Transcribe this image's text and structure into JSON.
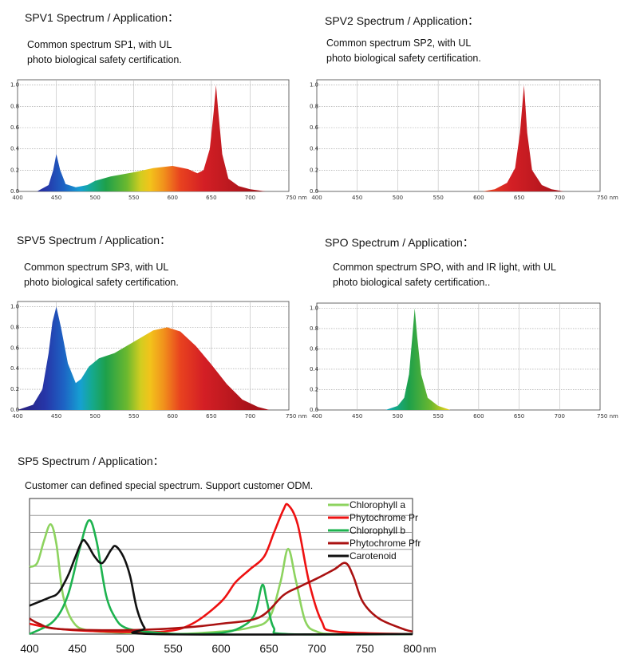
{
  "sections": {
    "spv1": {
      "title": "SPV1 Spectrum / Application：",
      "desc1": "Common spectrum SP1, with UL",
      "desc2": "photo biological safety certification."
    },
    "spv2": {
      "title": "SPV2 Spectrum / Application：",
      "desc1": "Common spectrum SP2, with UL",
      "desc2": "photo biological safety certification."
    },
    "spv5": {
      "title": "SPV5 Spectrum / Application：",
      "desc1": "Common spectrum SP3, with UL",
      "desc2": "photo biological safety certification."
    },
    "spo": {
      "title": "SPO Spectrum / Application：",
      "desc1": "Common spectrum SPO, with and IR light, with UL",
      "desc2": "photo biological safety certification.."
    },
    "sp5": {
      "title": "SP5 Spectrum / Application：",
      "desc1": "Customer can defined special spectrum. Support customer ODM."
    }
  },
  "chart_data": [
    {
      "id": "spv1",
      "type": "area",
      "x_ticks": [
        "400",
        "450",
        "500",
        "550",
        "600",
        "650",
        "700",
        "750 nm"
      ],
      "y_ticks": [
        "0.0",
        "0.2",
        "0.4",
        "0.6",
        "0.8",
        "1.0"
      ],
      "xlim": [
        400,
        750
      ],
      "ylim": [
        0,
        1.05
      ],
      "grid": true,
      "points": [
        [
          400,
          0.0
        ],
        [
          425,
          0.0
        ],
        [
          440,
          0.06
        ],
        [
          446,
          0.2
        ],
        [
          450,
          0.35
        ],
        [
          455,
          0.2
        ],
        [
          462,
          0.07
        ],
        [
          475,
          0.04
        ],
        [
          490,
          0.06
        ],
        [
          500,
          0.1
        ],
        [
          520,
          0.14
        ],
        [
          550,
          0.18
        ],
        [
          575,
          0.22
        ],
        [
          600,
          0.24
        ],
        [
          620,
          0.21
        ],
        [
          632,
          0.17
        ],
        [
          640,
          0.2
        ],
        [
          648,
          0.4
        ],
        [
          653,
          0.75
        ],
        [
          656,
          1.0
        ],
        [
          659,
          0.75
        ],
        [
          664,
          0.35
        ],
        [
          672,
          0.12
        ],
        [
          685,
          0.05
        ],
        [
          700,
          0.02
        ],
        [
          720,
          0.0
        ],
        [
          750,
          0.0
        ]
      ]
    },
    {
      "id": "spv2",
      "type": "area",
      "x_ticks": [
        "400",
        "450",
        "500",
        "550",
        "600",
        "650",
        "700",
        "750 nm"
      ],
      "y_ticks": [
        "0.0",
        "0.2",
        "0.4",
        "0.6",
        "0.8",
        "1.0"
      ],
      "xlim": [
        400,
        750
      ],
      "ylim": [
        0,
        1.05
      ],
      "grid": true,
      "points": [
        [
          400,
          0.0
        ],
        [
          605,
          0.0
        ],
        [
          620,
          0.02
        ],
        [
          635,
          0.08
        ],
        [
          645,
          0.22
        ],
        [
          651,
          0.55
        ],
        [
          656,
          1.0
        ],
        [
          660,
          0.55
        ],
        [
          666,
          0.2
        ],
        [
          678,
          0.06
        ],
        [
          690,
          0.02
        ],
        [
          705,
          0.0
        ],
        [
          750,
          0.0
        ]
      ]
    },
    {
      "id": "spv5",
      "type": "area",
      "x_ticks": [
        "400",
        "450",
        "500",
        "550",
        "600",
        "650",
        "700",
        "750 nm"
      ],
      "y_ticks": [
        "0.0",
        "0.2",
        "0.4",
        "0.6",
        "0.8",
        "1.0"
      ],
      "xlim": [
        400,
        750
      ],
      "ylim": [
        0,
        1.05
      ],
      "grid": true,
      "points": [
        [
          400,
          0.0
        ],
        [
          420,
          0.05
        ],
        [
          432,
          0.2
        ],
        [
          440,
          0.55
        ],
        [
          445,
          0.85
        ],
        [
          450,
          1.0
        ],
        [
          456,
          0.8
        ],
        [
          465,
          0.45
        ],
        [
          475,
          0.26
        ],
        [
          482,
          0.3
        ],
        [
          492,
          0.42
        ],
        [
          505,
          0.5
        ],
        [
          525,
          0.55
        ],
        [
          550,
          0.66
        ],
        [
          575,
          0.77
        ],
        [
          593,
          0.8
        ],
        [
          610,
          0.76
        ],
        [
          630,
          0.62
        ],
        [
          650,
          0.44
        ],
        [
          670,
          0.25
        ],
        [
          690,
          0.1
        ],
        [
          710,
          0.03
        ],
        [
          725,
          0.0
        ],
        [
          750,
          0.0
        ]
      ]
    },
    {
      "id": "spo",
      "type": "area",
      "x_ticks": [
        "400",
        "450",
        "500",
        "550",
        "600",
        "650",
        "700",
        "750 nm"
      ],
      "y_ticks": [
        "0.0",
        "0.2",
        "0.4",
        "0.6",
        "0.8",
        "1.0"
      ],
      "xlim": [
        400,
        750
      ],
      "ylim": [
        0,
        1.05
      ],
      "grid": true,
      "points": [
        [
          400,
          0.0
        ],
        [
          485,
          0.0
        ],
        [
          500,
          0.04
        ],
        [
          508,
          0.12
        ],
        [
          514,
          0.35
        ],
        [
          518,
          0.72
        ],
        [
          521,
          1.0
        ],
        [
          524,
          0.72
        ],
        [
          529,
          0.35
        ],
        [
          537,
          0.12
        ],
        [
          550,
          0.04
        ],
        [
          565,
          0.0
        ],
        [
          750,
          0.0
        ]
      ]
    },
    {
      "id": "sp5",
      "type": "line",
      "x_ticks": [
        "400",
        "450",
        "500",
        "550",
        "600",
        "650",
        "700",
        "750",
        "800"
      ],
      "x_unit": "nm",
      "xlim": [
        400,
        800
      ],
      "ylim": [
        0,
        1
      ],
      "grid": true,
      "legend_position": "top-right",
      "series": [
        {
          "name": "Chlorophyll a",
          "color": "#8dd35f",
          "points": [
            [
              400,
              0.52
            ],
            [
              408,
              0.55
            ],
            [
              415,
              0.72
            ],
            [
              422,
              0.85
            ],
            [
              428,
              0.7
            ],
            [
              435,
              0.3
            ],
            [
              445,
              0.1
            ],
            [
              460,
              0.03
            ],
            [
              500,
              0.01
            ],
            [
              550,
              0.0
            ],
            [
              600,
              0.02
            ],
            [
              630,
              0.05
            ],
            [
              650,
              0.12
            ],
            [
              662,
              0.4
            ],
            [
              670,
              0.66
            ],
            [
              678,
              0.42
            ],
            [
              688,
              0.1
            ],
            [
              700,
              0.02
            ],
            [
              720,
              0.0
            ],
            [
              800,
              0.0
            ]
          ]
        },
        {
          "name": "Phytochrome Pr",
          "color": "#ee1111",
          "points": [
            [
              400,
              0.08
            ],
            [
              430,
              0.04
            ],
            [
              480,
              0.02
            ],
            [
              540,
              0.02
            ],
            [
              570,
              0.08
            ],
            [
              600,
              0.25
            ],
            [
              615,
              0.4
            ],
            [
              630,
              0.5
            ],
            [
              645,
              0.6
            ],
            [
              655,
              0.78
            ],
            [
              665,
              0.96
            ],
            [
              670,
              1.0
            ],
            [
              680,
              0.85
            ],
            [
              692,
              0.4
            ],
            [
              705,
              0.1
            ],
            [
              720,
              0.02
            ],
            [
              800,
              0.0
            ]
          ]
        },
        {
          "name": "Chlorophyll b",
          "color": "#1db34f",
          "points": [
            [
              400,
              0.0
            ],
            [
              425,
              0.1
            ],
            [
              440,
              0.3
            ],
            [
              452,
              0.65
            ],
            [
              462,
              0.88
            ],
            [
              470,
              0.72
            ],
            [
              480,
              0.3
            ],
            [
              490,
              0.12
            ],
            [
              500,
              0.05
            ],
            [
              520,
              0.02
            ],
            [
              560,
              0.0
            ],
            [
              600,
              0.01
            ],
            [
              620,
              0.05
            ],
            [
              635,
              0.15
            ],
            [
              643,
              0.38
            ],
            [
              648,
              0.25
            ],
            [
              655,
              0.05
            ],
            [
              670,
              0.0
            ],
            [
              800,
              0.0
            ]
          ]
        },
        {
          "name": "Phytochrome Pfr",
          "color": "#aa1111",
          "points": [
            [
              400,
              0.12
            ],
            [
              410,
              0.08
            ],
            [
              430,
              0.04
            ],
            [
              500,
              0.03
            ],
            [
              560,
              0.05
            ],
            [
              600,
              0.08
            ],
            [
              640,
              0.13
            ],
            [
              665,
              0.3
            ],
            [
              680,
              0.36
            ],
            [
              700,
              0.43
            ],
            [
              718,
              0.5
            ],
            [
              730,
              0.55
            ],
            [
              738,
              0.45
            ],
            [
              748,
              0.25
            ],
            [
              765,
              0.12
            ],
            [
              790,
              0.04
            ],
            [
              800,
              0.02
            ]
          ]
        },
        {
          "name": "Carotenoid",
          "color": "#111111",
          "points": [
            [
              400,
              0.22
            ],
            [
              420,
              0.28
            ],
            [
              430,
              0.32
            ],
            [
              440,
              0.45
            ],
            [
              447,
              0.58
            ],
            [
              455,
              0.72
            ],
            [
              460,
              0.7
            ],
            [
              468,
              0.6
            ],
            [
              476,
              0.55
            ],
            [
              485,
              0.65
            ],
            [
              490,
              0.68
            ],
            [
              498,
              0.6
            ],
            [
              505,
              0.45
            ],
            [
              512,
              0.2
            ],
            [
              520,
              0.05
            ],
            [
              530,
              0.0
            ],
            [
              800,
              0.0
            ]
          ]
        }
      ]
    }
  ]
}
